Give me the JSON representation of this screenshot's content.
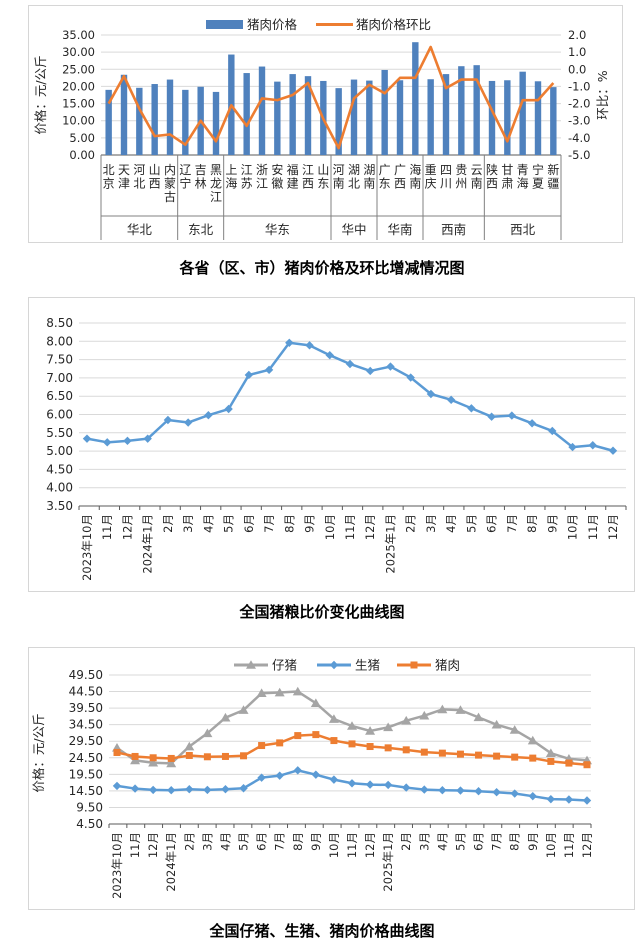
{
  "chart_data": [
    {
      "id": "province-pork-price-and-mom-change",
      "type": "bar+line",
      "title": "各省（区、市）猪肉价格及环比增减情况图",
      "legend": [
        "猪肉价格",
        "猪肉价格环比"
      ],
      "y_left": {
        "label": "价格：元/公斤",
        "min": 0,
        "max": 35,
        "step": 5,
        "ticks": [
          "35.00",
          "30.00",
          "25.00",
          "20.00",
          "15.00",
          "10.00",
          "5.00",
          "0.00"
        ]
      },
      "y_right": {
        "label": "环比：%",
        "min": -5,
        "max": 2,
        "step": 1,
        "ticks": [
          "2.0",
          "1.0",
          "0.0",
          "-1.0",
          "-2.0",
          "-3.0",
          "-4.0",
          "-5.0"
        ],
        "negative_color": "#FF0000"
      },
      "regions": [
        {
          "name": "华北",
          "provinces": [
            "北京",
            "天津",
            "河北",
            "山西",
            "内蒙古"
          ]
        },
        {
          "name": "东北",
          "provinces": [
            "辽宁",
            "吉林",
            "黑龙江"
          ]
        },
        {
          "name": "华东",
          "provinces": [
            "上海",
            "江苏",
            "浙江",
            "安徽",
            "福建",
            "江西",
            "山东"
          ]
        },
        {
          "name": "华中",
          "provinces": [
            "河南",
            "湖北",
            "湖南"
          ]
        },
        {
          "name": "华南",
          "provinces": [
            "广东",
            "广西",
            "海南"
          ]
        },
        {
          "name": "西南",
          "provinces": [
            "重庆",
            "四川",
            "贵州",
            "云南"
          ]
        },
        {
          "name": "西北",
          "provinces": [
            "陕西",
            "甘肃",
            "青海",
            "宁夏",
            "新疆"
          ]
        }
      ],
      "series": [
        {
          "name": "猪肉价格",
          "type": "bar",
          "color": "#4F81BD",
          "values": [
            19.0,
            23.4,
            19.6,
            20.7,
            22.0,
            19.0,
            19.9,
            18.4,
            29.3,
            23.9,
            25.8,
            21.4,
            23.6,
            23.0,
            21.6,
            19.5,
            22.0,
            21.7,
            24.8,
            21.8,
            32.9,
            22.1,
            23.6,
            25.9,
            26.2,
            21.6,
            21.8,
            24.3,
            21.5,
            19.8
          ]
        },
        {
          "name": "猪肉价格环比",
          "type": "line",
          "color": "#ED7D31",
          "values": [
            -2.0,
            -0.4,
            -2.3,
            -3.9,
            -3.8,
            -4.4,
            -3.0,
            -4.2,
            -2.1,
            -3.3,
            -1.7,
            -1.8,
            -1.5,
            -0.8,
            -2.9,
            -4.6,
            -1.7,
            -0.9,
            -1.4,
            -0.5,
            -0.5,
            1.3,
            -1.1,
            -0.6,
            -0.6,
            -2.4,
            -4.2,
            -1.8,
            -1.8,
            -0.8
          ]
        }
      ]
    },
    {
      "id": "pig-grain-price-ratio",
      "type": "line",
      "title": "全国猪粮比价变化曲线图",
      "ylim": [
        3.5,
        8.5
      ],
      "ystep": 0.5,
      "y_ticks": [
        "8.50",
        "8.00",
        "7.50",
        "7.00",
        "6.50",
        "6.00",
        "5.50",
        "5.00",
        "4.50",
        "4.00",
        "3.50"
      ],
      "categories": [
        "2023年10月",
        "11月",
        "12月",
        "2024年1月",
        "2月",
        "3月",
        "4月",
        "5月",
        "6月",
        "7月",
        "8月",
        "9月",
        "10月",
        "11月",
        "12月",
        "2025年1月",
        "2月",
        "3月",
        "4月",
        "5月",
        "6月",
        "7月",
        "8月",
        "9月",
        "10月",
        "11月",
        "12月"
      ],
      "series": [
        {
          "name": "猪粮比价",
          "color": "#5B9BD5",
          "marker": "diamond",
          "values": [
            5.34,
            5.24,
            5.28,
            5.34,
            5.85,
            5.78,
            5.98,
            6.15,
            7.08,
            7.22,
            7.96,
            7.89,
            7.62,
            7.38,
            7.19,
            7.31,
            7.01,
            6.56,
            6.4,
            6.17,
            5.94,
            5.97,
            5.76,
            5.55,
            5.11,
            5.16,
            5.01
          ]
        }
      ]
    },
    {
      "id": "piglet-hog-pork-price",
      "type": "line",
      "title": "全国仔猪、生猪、猪肉价格曲线图",
      "y_label": "价格：元/公斤",
      "ylim": [
        4.5,
        49.5
      ],
      "ystep": 5,
      "y_ticks": [
        "49.50",
        "44.50",
        "39.50",
        "34.50",
        "29.50",
        "24.50",
        "19.50",
        "14.50",
        "9.50",
        "4.50"
      ],
      "legend": [
        "仔猪",
        "生猪",
        "猪肉"
      ],
      "categories": [
        "2023年10月",
        "11月",
        "12月",
        "2024年1月",
        "2月",
        "3月",
        "4月",
        "5月",
        "6月",
        "7月",
        "8月",
        "9月",
        "10月",
        "11月",
        "12月",
        "2025年1月",
        "2月",
        "3月",
        "4月",
        "5月",
        "6月",
        "7月",
        "8月",
        "9月",
        "10月",
        "11月",
        "12月"
      ],
      "series": [
        {
          "name": "仔猪",
          "color": "#A5A5A5",
          "marker": "triangle",
          "values": [
            27.5,
            23.7,
            23.0,
            22.8,
            27.9,
            31.9,
            36.6,
            38.9,
            44.0,
            44.2,
            44.5,
            41.0,
            36.2,
            34.1,
            32.6,
            33.7,
            35.7,
            37.2,
            39.1,
            38.9,
            36.7,
            34.5,
            32.9,
            29.7,
            25.9,
            24.2,
            23.7
          ]
        },
        {
          "name": "生猪",
          "color": "#5B9BD5",
          "marker": "diamond",
          "values": [
            16.0,
            15.2,
            14.8,
            14.7,
            15.0,
            14.8,
            15.0,
            15.3,
            18.5,
            19.1,
            20.7,
            19.4,
            17.9,
            16.8,
            16.4,
            16.3,
            15.5,
            14.9,
            14.7,
            14.6,
            14.4,
            14.1,
            13.7,
            12.9,
            12.0,
            11.9,
            11.6
          ]
        },
        {
          "name": "猪肉",
          "color": "#ED7D31",
          "marker": "square",
          "values": [
            26.1,
            24.9,
            24.5,
            24.3,
            25.2,
            24.8,
            24.9,
            25.1,
            28.2,
            29.0,
            31.2,
            31.5,
            29.7,
            28.7,
            27.9,
            27.5,
            26.9,
            26.2,
            25.9,
            25.6,
            25.3,
            25.0,
            24.7,
            24.4,
            23.4,
            22.9,
            22.4
          ]
        }
      ]
    }
  ],
  "colors": {
    "bar_blue": "#4F81BD",
    "line_orange": "#ED7D31",
    "line_blue": "#5B9BD5",
    "line_gray": "#A5A5A5",
    "grid": "#D9D9D9",
    "axis": "#595959",
    "negative_tick": "#FF0000"
  }
}
